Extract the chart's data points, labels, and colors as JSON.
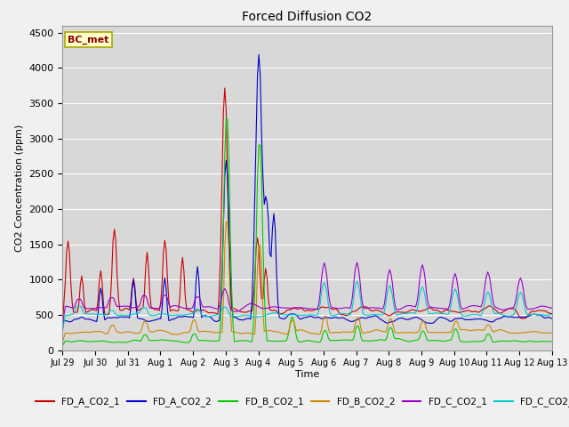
{
  "title": "Forced Diffusion CO2",
  "ylabel": "CO2 Concentration (ppm)",
  "xlabel": "Time",
  "ylim": [
    0,
    4600
  ],
  "background_color": "#f0f0f0",
  "axes_bg": "#d8d8d8",
  "grid_color": "#ffffff",
  "series": {
    "FD_A_CO2_1": {
      "color": "#cc0000",
      "lw": 0.8
    },
    "FD_A_CO2_2": {
      "color": "#0000cc",
      "lw": 0.8
    },
    "FD_B_CO2_1": {
      "color": "#00cc00",
      "lw": 0.8
    },
    "FD_B_CO2_2": {
      "color": "#cc8800",
      "lw": 0.8
    },
    "FD_C_CO2_1": {
      "color": "#9900cc",
      "lw": 0.8
    },
    "FD_C_CO2_2": {
      "color": "#00cccc",
      "lw": 0.8
    }
  },
  "xtick_labels": [
    "Jul 29",
    "Jul 30",
    "Jul 31",
    "Aug 1",
    "Aug 2",
    "Aug 3",
    "Aug 4",
    "Aug 5",
    "Aug 6",
    "Aug 7",
    "Aug 8",
    "Aug 9",
    "Aug 10",
    "Aug 11",
    "Aug 12",
    "Aug 13"
  ],
  "annotation_text": "BC_met",
  "annotation_color": "#8b0000",
  "annotation_bg": "#ffffcc",
  "annotation_border": "#aaaa00"
}
